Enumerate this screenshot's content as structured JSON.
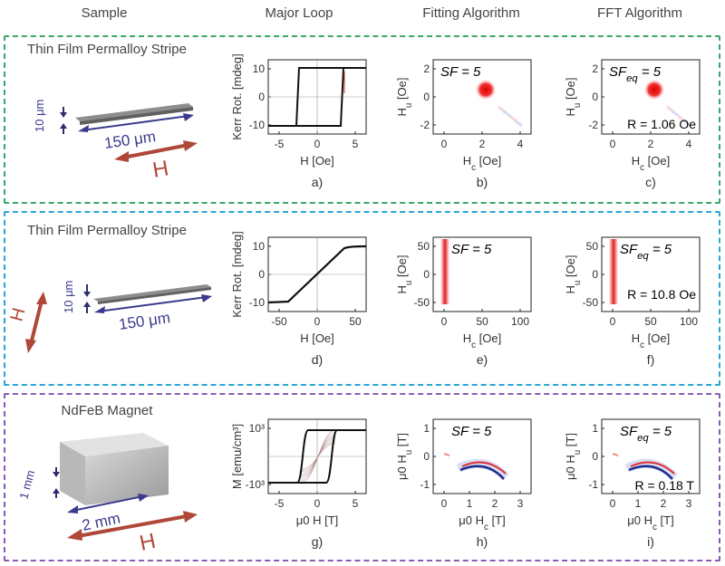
{
  "columns": [
    "Sample",
    "Major Loop",
    "Fitting Algorithm",
    "FFT Algorithm"
  ],
  "rows": [
    {
      "title": "Thin Film Permalloy Stripe",
      "border_color": "#3aa86b",
      "sample": {
        "thickness": "10 μm",
        "length": "150 μm",
        "field": "H"
      },
      "loop": {
        "ylabel": "Kerr Rot. [mdeg]",
        "xlabel": "H [Oe]",
        "xticks": [
          "-5",
          "0",
          "5"
        ],
        "yticks": [
          "10",
          "0",
          "-10"
        ],
        "caption": "a)"
      },
      "fit": {
        "ylabel": "H_u [Oe]",
        "xlabel": "H_c [Oe]",
        "xticks": [
          "0",
          "2",
          "4"
        ],
        "yticks": [
          "2",
          "0",
          "-2"
        ],
        "sf": "SF = 5",
        "caption": "b)"
      },
      "fft": {
        "ylabel": "H_u [Oe]",
        "xlabel": "H_c [Oe]",
        "xticks": [
          "0",
          "2",
          "4"
        ],
        "yticks": [
          "2",
          "0",
          "-2"
        ],
        "sf": "SF_eq = 5",
        "r": "R = 1.06 Oe",
        "caption": "c)"
      }
    },
    {
      "title": "Thin Film Permalloy Stripe",
      "border_color": "#2aa6d6",
      "sample": {
        "thickness": "10 μm",
        "length": "150 μm",
        "field": "H"
      },
      "loop": {
        "ylabel": "Kerr Rot. [mdeg]",
        "xlabel": "H [Oe]",
        "xticks": [
          "-50",
          "0",
          "50"
        ],
        "yticks": [
          "10",
          "0",
          "-10"
        ],
        "caption": "d)"
      },
      "fit": {
        "ylabel": "H_u [Oe]",
        "xlabel": "H_c [Oe]",
        "xticks": [
          "0",
          "50",
          "100"
        ],
        "yticks": [
          "50",
          "0",
          "-50"
        ],
        "sf": "SF = 5",
        "caption": "e)"
      },
      "fft": {
        "ylabel": "H_u [Oe]",
        "xlabel": "H_c [Oe]",
        "xticks": [
          "0",
          "50",
          "100"
        ],
        "yticks": [
          "50",
          "0",
          "-50"
        ],
        "sf": "SF_eq = 5",
        "r": "R = 10.8 Oe",
        "caption": "f)"
      }
    },
    {
      "title": "NdFeB Magnet",
      "border_color": "#8a5bb8",
      "sample": {
        "thickness": "1 mm",
        "length": "2 mm",
        "field": "H"
      },
      "loop": {
        "ylabel": "M [emu/cm³]",
        "xlabel": "μ0 H [T]",
        "xticks": [
          "-5",
          "0",
          "5"
        ],
        "yticks": [
          "10³",
          "-10³"
        ],
        "caption": "g)"
      },
      "fit": {
        "ylabel": "μ0 H_u [T]",
        "xlabel": "μ0 H_c [T]",
        "xticks": [
          "0",
          "1",
          "2",
          "3"
        ],
        "yticks": [
          "1",
          "0",
          "-1"
        ],
        "sf": "SF = 5",
        "caption": "h)"
      },
      "fft": {
        "ylabel": "μ0 H_u [T]",
        "xlabel": "μ0 H_c [T]",
        "xticks": [
          "0",
          "1",
          "2",
          "3"
        ],
        "yticks": [
          "1",
          "0",
          "-1"
        ],
        "sf": "SF_eq = 5",
        "r": "R = 0.18 T",
        "caption": "i)"
      }
    }
  ]
}
